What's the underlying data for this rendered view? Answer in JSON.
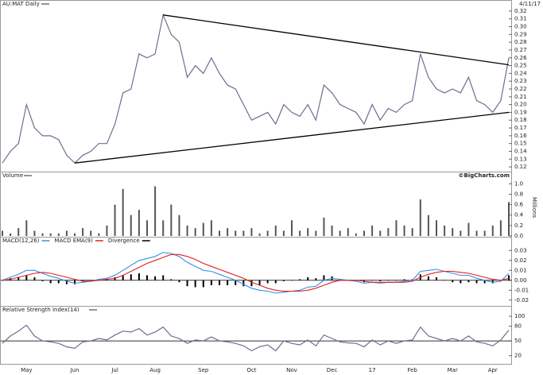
{
  "chart_data": [
    {
      "type": "line",
      "title": "AU:MAT Daily",
      "date": "4/11/17",
      "color": "#6e6e90",
      "values": [
        0.125,
        0.14,
        0.15,
        0.2,
        0.17,
        0.16,
        0.16,
        0.155,
        0.135,
        0.125,
        0.135,
        0.14,
        0.15,
        0.15,
        0.175,
        0.215,
        0.22,
        0.265,
        0.26,
        0.265,
        0.315,
        0.29,
        0.28,
        0.235,
        0.25,
        0.24,
        0.26,
        0.24,
        0.225,
        0.22,
        0.2,
        0.18,
        0.185,
        0.19,
        0.175,
        0.2,
        0.19,
        0.185,
        0.2,
        0.18,
        0.225,
        0.215,
        0.2,
        0.195,
        0.19,
        0.175,
        0.2,
        0.18,
        0.195,
        0.19,
        0.2,
        0.205,
        0.265,
        0.235,
        0.22,
        0.215,
        0.22,
        0.215,
        0.235,
        0.205,
        0.2,
        0.19,
        0.205,
        0.26
      ],
      "trend_lines": [
        {
          "x": [
            20,
            63
          ],
          "values": [
            0.315,
            0.251
          ],
          "color": "#000000"
        },
        {
          "x": [
            9,
            63
          ],
          "values": [
            0.125,
            0.19
          ],
          "color": "#000000"
        }
      ],
      "ylim": [
        0.115,
        0.325
      ],
      "yticks": [
        0.12,
        0.13,
        0.14,
        0.15,
        0.16,
        0.17,
        0.18,
        0.19,
        {
          "value": 0.2,
          "label": "0.20"
        },
        0.21,
        0.22,
        0.23,
        0.24,
        0.25,
        0.26,
        0.27,
        0.28,
        0.29,
        {
          "value": 0.3,
          "label": "0.30"
        },
        0.31,
        0.32
      ]
    },
    {
      "type": "bar",
      "title": "Volume",
      "credit": "©BigCharts.com",
      "axis_label": "Millions",
      "color": "#555555",
      "values": [
        0.1,
        0.05,
        0.15,
        0.3,
        0.1,
        0.05,
        0.05,
        0.05,
        0.1,
        0.05,
        0.15,
        0.1,
        0.05,
        0.2,
        0.6,
        0.9,
        0.4,
        0.5,
        0.3,
        0.95,
        0.3,
        0.6,
        0.4,
        0.2,
        0.15,
        0.25,
        0.3,
        0.1,
        0.15,
        0.1,
        0.1,
        0.15,
        0.05,
        0.1,
        0.2,
        0.1,
        0.3,
        0.1,
        0.15,
        0.1,
        0.35,
        0.2,
        0.1,
        0.15,
        0.05,
        0.1,
        0.2,
        0.1,
        0.15,
        0.3,
        0.2,
        0.15,
        0.7,
        0.4,
        0.3,
        0.2,
        0.15,
        0.1,
        0.25,
        0.1,
        0.1,
        0.2,
        0.3,
        0.65
      ],
      "ylim": [
        0,
        1.05
      ],
      "yticks": [
        {
          "value": 0,
          "label": "0.0"
        },
        0.2,
        0.4,
        0.6,
        0.8,
        {
          "value": 1,
          "label": "1.0"
        }
      ]
    },
    {
      "type": "combo",
      "midline": 0,
      "series": [
        {
          "name": "MACD(12,26)",
          "type": "line",
          "color": "#3a8ee6",
          "values": [
            0,
            0.003,
            0.006,
            0.01,
            0.01,
            0.007,
            0.004,
            0.002,
            -0.001,
            -0.003,
            -0.002,
            -0.001,
            0.001,
            0.002,
            0.005,
            0.01,
            0.015,
            0.02,
            0.022,
            0.024,
            0.028,
            0.027,
            0.024,
            0.018,
            0.014,
            0.01,
            0.009,
            0.006,
            0.003,
            0,
            -0.004,
            -0.008,
            -0.01,
            -0.011,
            -0.013,
            -0.012,
            -0.011,
            -0.01,
            -0.007,
            -0.006,
            0,
            0.002,
            0.001,
            0,
            -0.001,
            -0.003,
            -0.002,
            -0.003,
            -0.002,
            -0.002,
            -0.001,
            0,
            0.009,
            0.01,
            0.011,
            0.009,
            0.007,
            0.005,
            0.005,
            0.002,
            0,
            -0.002,
            -0.001,
            0.007
          ]
        },
        {
          "name": "MACD EMA(9)",
          "type": "line",
          "color": "#e02020",
          "values": [
            0,
            0.001,
            0.003,
            0.005,
            0.007,
            0.008,
            0.007,
            0.005,
            0.003,
            0.001,
            -0.001,
            -0.001,
            0,
            0.001,
            0.002,
            0.005,
            0.009,
            0.013,
            0.017,
            0.02,
            0.023,
            0.026,
            0.026,
            0.024,
            0.021,
            0.017,
            0.014,
            0.011,
            0.008,
            0.005,
            0.002,
            -0.002,
            -0.005,
            -0.008,
            -0.01,
            -0.011,
            -0.011,
            -0.011,
            -0.01,
            -0.008,
            -0.005,
            -0.002,
            0,
            0,
            0,
            -0.001,
            -0.002,
            -0.002,
            -0.002,
            -0.002,
            -0.002,
            -0.001,
            0.003,
            0.006,
            0.008,
            0.009,
            0.009,
            0.008,
            0.007,
            0.005,
            0.003,
            0.001,
            0,
            0.002
          ]
        },
        {
          "name": "Divergence",
          "type": "bar",
          "color": "#000000",
          "values": [
            0,
            0.002,
            0.003,
            0.005,
            0.003,
            -0.001,
            -0.003,
            -0.003,
            -0.004,
            -0.004,
            -0.001,
            0,
            0.001,
            0.001,
            0.003,
            0.005,
            0.006,
            0.007,
            0.005,
            0.004,
            0.005,
            0.001,
            -0.002,
            -0.006,
            -0.007,
            -0.007,
            -0.005,
            -0.005,
            -0.005,
            -0.005,
            -0.006,
            -0.006,
            -0.005,
            -0.003,
            -0.003,
            -0.001,
            0,
            0.001,
            0.003,
            0.002,
            0.005,
            0.004,
            0.001,
            0,
            -0.001,
            -0.002,
            0,
            -0.001,
            0,
            0,
            0.001,
            0.001,
            0.006,
            0.004,
            0.003,
            0,
            -0.002,
            -0.003,
            -0.002,
            -0.003,
            -0.003,
            -0.003,
            -0.001,
            0.005
          ]
        }
      ],
      "ylim": [
        -0.025,
        0.035
      ],
      "yticks": [
        0.03,
        0.02,
        0.01,
        {
          "value": 0,
          "label": "0.00"
        },
        -0.01,
        -0.02
      ]
    },
    {
      "type": "line",
      "title": "Relative Strength Index(14)",
      "color": "#6e6e90",
      "midline": 50,
      "values": [
        45,
        60,
        70,
        82,
        60,
        50,
        48,
        45,
        38,
        35,
        48,
        50,
        55,
        52,
        62,
        70,
        68,
        75,
        62,
        68,
        78,
        60,
        55,
        45,
        52,
        50,
        58,
        50,
        48,
        45,
        40,
        30,
        38,
        42,
        30,
        50,
        45,
        42,
        52,
        40,
        62,
        55,
        48,
        46,
        45,
        38,
        52,
        42,
        50,
        45,
        50,
        52,
        78,
        60,
        55,
        50,
        55,
        50,
        60,
        48,
        45,
        40,
        52,
        72
      ],
      "categories": [
        null,
        null,
        null,
        "May",
        null,
        null,
        null,
        null,
        null,
        "Jun",
        null,
        null,
        null,
        null,
        "Jul",
        null,
        null,
        null,
        null,
        "Aug",
        null,
        null,
        null,
        null,
        null,
        "Sep",
        null,
        null,
        null,
        null,
        null,
        "Oct",
        null,
        null,
        null,
        null,
        "Nov",
        null,
        null,
        null,
        null,
        "Dec",
        null,
        null,
        null,
        null,
        "17",
        null,
        null,
        null,
        null,
        "Feb",
        null,
        null,
        null,
        null,
        "Mar",
        null,
        null,
        null,
        null,
        "Apr",
        null,
        null
      ],
      "ylim": [
        5,
        105
      ],
      "yticks": [
        100,
        80,
        50,
        20
      ]
    }
  ]
}
